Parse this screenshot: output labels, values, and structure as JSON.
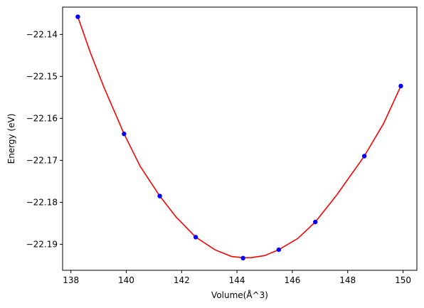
{
  "chart_data": {
    "type": "line",
    "xlabel": "Volume(Å^3)",
    "ylabel": "Energy (eV)",
    "xlim": [
      137.7,
      150.5
    ],
    "ylim": [
      -22.1962,
      -22.1335
    ],
    "x_ticks": [
      {
        "value": 138,
        "label": "138"
      },
      {
        "value": 140,
        "label": "140"
      },
      {
        "value": 142,
        "label": "142"
      },
      {
        "value": 144,
        "label": "144"
      },
      {
        "value": 146,
        "label": "146"
      },
      {
        "value": 148,
        "label": "148"
      },
      {
        "value": 150,
        "label": "150"
      }
    ],
    "y_ticks": [
      {
        "value": -22.14,
        "label": "−22.14"
      },
      {
        "value": -22.15,
        "label": "−22.15"
      },
      {
        "value": -22.16,
        "label": "−22.16"
      },
      {
        "value": -22.17,
        "label": "−22.17"
      },
      {
        "value": -22.18,
        "label": "−22.18"
      },
      {
        "value": -22.19,
        "label": "−22.19"
      }
    ],
    "grid": false,
    "series": [
      {
        "kind": "scatter",
        "color": "#0000ff",
        "x": [
          138.25,
          139.92,
          141.21,
          142.51,
          144.22,
          145.51,
          146.83,
          148.6,
          149.92
        ],
        "y": [
          -22.1358,
          -22.1637,
          -22.1785,
          -22.1883,
          -22.1933,
          -22.1913,
          -22.1847,
          -22.169,
          -22.1523
        ]
      },
      {
        "kind": "fit-line",
        "color": "#ff0000",
        "x": [
          138.25,
          138.7,
          139.2,
          139.92,
          140.5,
          141.21,
          141.8,
          142.51,
          143.2,
          143.8,
          144.22,
          144.5,
          145.0,
          145.51,
          146.2,
          146.83,
          147.6,
          148.6,
          149.3,
          149.92
        ],
        "y": [
          -22.1358,
          -22.1443,
          -22.1527,
          -22.1637,
          -22.1714,
          -22.1785,
          -22.1835,
          -22.1883,
          -22.1913,
          -22.1929,
          -22.1932,
          -22.1932,
          -22.1927,
          -22.1913,
          -22.1886,
          -22.1847,
          -22.1783,
          -22.169,
          -22.1612,
          -22.1523
        ]
      }
    ]
  }
}
